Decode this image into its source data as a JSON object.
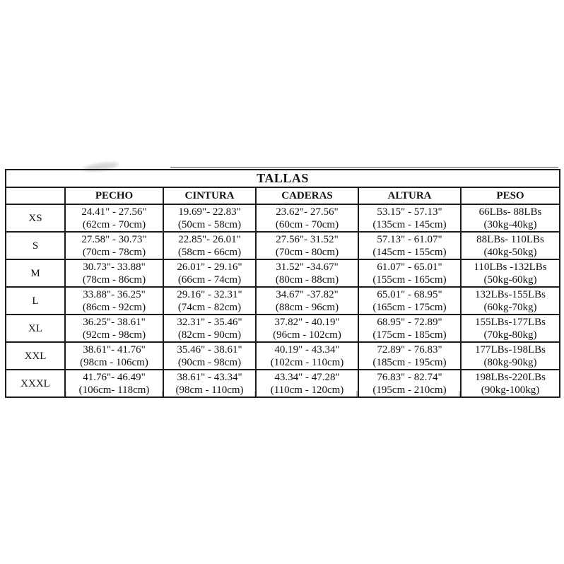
{
  "page": {
    "background": "#ffffff",
    "border_color": "#1c1c1c",
    "text_color": "#111111"
  },
  "table": {
    "title": "TALLAS",
    "columns": [
      "",
      "PECHO",
      "CINTURA",
      "CADERAS",
      "ALTURA",
      "PESO"
    ],
    "rows": [
      {
        "size": "XS",
        "cells": [
          [
            "24.41\" - 27.56\"",
            "(62cm - 70cm)"
          ],
          [
            "19.69\"- 22.83\"",
            "(50cm - 58cm)"
          ],
          [
            "23.62\"- 27.56\"",
            "(60cm - 70cm)"
          ],
          [
            "53.15\" - 57.13\"",
            "(135cm - 145cm)"
          ],
          [
            "66LBs- 88LBs",
            "(30kg-40kg)"
          ]
        ]
      },
      {
        "size": "S",
        "cells": [
          [
            "27.58\" - 30.73\"",
            "(70cm - 78cm)"
          ],
          [
            "22.85\"- 26.01\"",
            "(58cm - 66cm)"
          ],
          [
            "27.56\"- 31.52\"",
            "(70cm - 80cm)"
          ],
          [
            "57.13\" - 61.07\"",
            "(145cm - 155cm)"
          ],
          [
            "88LBs- 110LBs",
            "(40kg-50kg)"
          ]
        ]
      },
      {
        "size": "M",
        "cells": [
          [
            "30.73\"- 33.88\"",
            "(78cm - 86cm)"
          ],
          [
            "26.01\" - 29.16\"",
            "(66cm - 74cm)"
          ],
          [
            "31.52\" -34.67\"",
            "(80cm - 88cm)"
          ],
          [
            "61.07\" - 65.01\"",
            "(155cm - 165cm)"
          ],
          [
            "110LBs -132LBs",
            "(50kg-60kg)"
          ]
        ]
      },
      {
        "size": "L",
        "cells": [
          [
            "33.88\"- 36.25\"",
            "(86cm - 92cm)"
          ],
          [
            "29.16\" - 32.31\"",
            "(74cm - 82cm)"
          ],
          [
            "34.67\" -37.82\"",
            "(88cm - 96cm)"
          ],
          [
            "65.01\" - 68.95\"",
            "(165cm - 175cm)"
          ],
          [
            "132LBs-155LBs",
            "(60kg-70kg)"
          ]
        ]
      },
      {
        "size": "XL",
        "cells": [
          [
            "36.25\"- 38.61\"",
            "(92cm - 98cm)"
          ],
          [
            "32.31\" - 35.46\"",
            "(82cm - 90cm)"
          ],
          [
            "37.82\" - 40.19\"",
            "(96cm - 102cm)"
          ],
          [
            "68.95\" - 72.89\"",
            "(175cm - 185cm)"
          ],
          [
            "155LBs-177LBs",
            "(70kg-80kg)"
          ]
        ]
      },
      {
        "size": "XXL",
        "cells": [
          [
            "38.61\"- 41.76\"",
            "(98cm - 106cm)"
          ],
          [
            "35.46\" - 38.61\"",
            "(90cm - 98cm)"
          ],
          [
            "40.19\" - 43.34\"",
            "(102cm - 110cm)"
          ],
          [
            "72.89\" - 76.83\"",
            "(185cm - 195cm)"
          ],
          [
            "177LBs-198LBs",
            "(80kg-90kg)"
          ]
        ]
      },
      {
        "size": "XXXL",
        "cells": [
          [
            "41.76\"- 46.49\"",
            "(106cm- 118cm)"
          ],
          [
            "38.61\" - 43.34\"",
            "(98cm - 110cm)"
          ],
          [
            "43.34\" - 47.28\"",
            "(110cm - 120cm)"
          ],
          [
            "76.83\" - 82.74\"",
            "(195cm - 210cm)"
          ],
          [
            "198LBs-220LBs",
            "(90kg-100kg)"
          ]
        ]
      }
    ]
  }
}
